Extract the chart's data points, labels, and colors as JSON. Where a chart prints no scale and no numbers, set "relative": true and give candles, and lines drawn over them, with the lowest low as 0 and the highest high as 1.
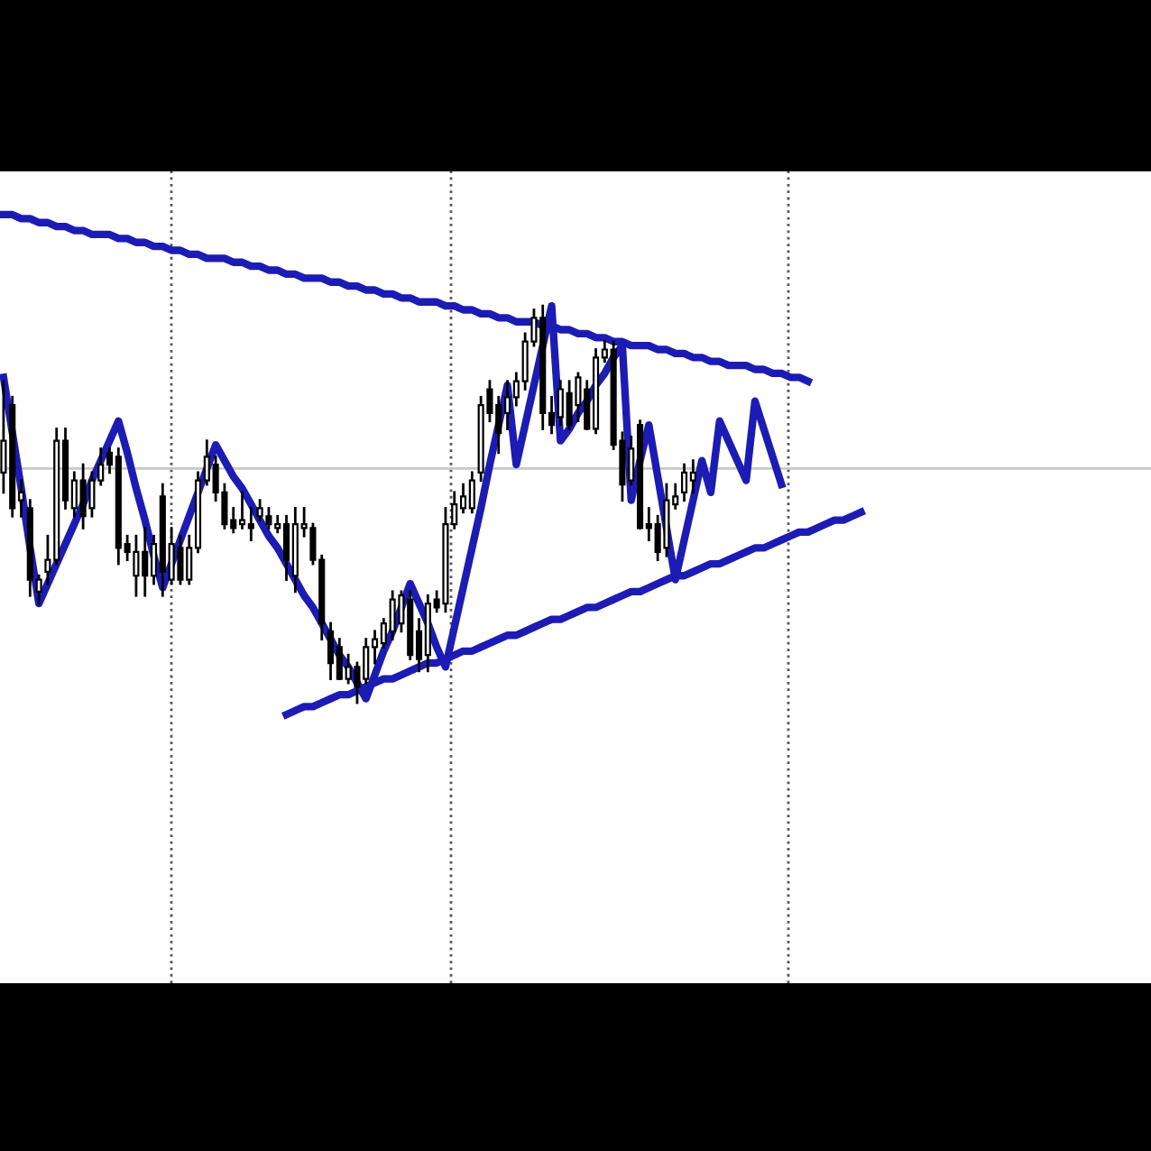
{
  "chart_data": {
    "type": "candlestick",
    "relative": true,
    "categories": [
      null,
      null,
      null,
      null,
      null,
      null,
      null,
      null,
      null,
      null,
      null,
      null,
      null,
      null,
      null,
      null,
      null,
      null,
      null,
      null,
      null,
      null,
      null,
      null,
      null,
      null,
      null,
      null,
      null,
      null,
      null,
      null,
      null,
      null,
      null,
      null,
      null,
      null,
      null,
      null,
      null,
      null,
      null,
      null,
      null,
      null,
      null,
      null,
      null,
      null,
      null,
      null,
      null,
      null,
      null,
      null,
      null,
      null,
      null,
      null,
      null,
      null,
      null,
      null,
      null,
      null,
      null,
      null,
      null,
      null,
      null,
      null,
      null,
      null,
      null,
      null,
      null,
      null,
      null,
      null,
      null,
      null,
      null,
      null,
      null,
      null,
      null,
      null,
      null,
      null,
      null,
      null,
      null,
      null,
      null,
      null,
      null,
      null,
      null,
      null,
      null,
      null,
      null,
      null,
      null,
      null,
      null,
      null,
      null,
      null,
      null,
      null,
      null,
      null,
      null,
      null,
      null,
      null,
      null,
      null,
      null,
      null,
      null,
      null,
      null,
      null,
      null,
      null,
      null,
      null
    ],
    "ohlc": [
      [
        0.58,
        0.81,
        0.53,
        0.66
      ],
      [
        0.75,
        0.77,
        0.47,
        0.49
      ],
      [
        0.51,
        0.56,
        0.47,
        0.53
      ],
      [
        0.49,
        0.51,
        0.27,
        0.31
      ],
      [
        0.28,
        0.32,
        0.25,
        0.31
      ],
      [
        0.33,
        0.42,
        0.3,
        0.36
      ],
      [
        0.36,
        0.69,
        0.35,
        0.66
      ],
      [
        0.66,
        0.69,
        0.49,
        0.51
      ],
      [
        0.49,
        0.58,
        0.47,
        0.56
      ],
      [
        0.56,
        0.6,
        0.44,
        0.47
      ],
      [
        0.49,
        0.58,
        0.47,
        0.56
      ],
      [
        0.56,
        0.64,
        0.55,
        0.6
      ],
      [
        0.63,
        0.64,
        0.58,
        0.6
      ],
      [
        0.62,
        0.64,
        0.35,
        0.39
      ],
      [
        0.4,
        0.42,
        0.36,
        0.38
      ],
      [
        0.32,
        0.42,
        0.27,
        0.38
      ],
      [
        0.38,
        0.44,
        0.27,
        0.32
      ],
      [
        0.32,
        0.42,
        0.3,
        0.4
      ],
      [
        0.52,
        0.55,
        0.27,
        0.33
      ],
      [
        0.31,
        0.44,
        0.3,
        0.4
      ],
      [
        0.39,
        0.42,
        0.3,
        0.31
      ],
      [
        0.31,
        0.42,
        0.3,
        0.39
      ],
      [
        0.39,
        0.58,
        0.38,
        0.56
      ],
      [
        0.56,
        0.66,
        0.55,
        0.62
      ],
      [
        0.6,
        0.62,
        0.51,
        0.53
      ],
      [
        0.53,
        0.55,
        0.44,
        0.45
      ],
      [
        0.46,
        0.49,
        0.43,
        0.44
      ],
      [
        0.45,
        0.53,
        0.44,
        0.46
      ],
      [
        0.45,
        0.49,
        0.41,
        0.44
      ],
      [
        0.47,
        0.51,
        0.46,
        0.49
      ],
      [
        0.47,
        0.49,
        0.44,
        0.45
      ],
      [
        0.44,
        0.47,
        0.43,
        0.45
      ],
      [
        0.45,
        0.47,
        0.31,
        0.36
      ],
      [
        0.32,
        0.49,
        0.28,
        0.45
      ],
      [
        0.44,
        0.49,
        0.42,
        0.45
      ],
      [
        0.44,
        0.45,
        0.35,
        0.36
      ],
      [
        0.36,
        0.37,
        0.16,
        0.2
      ],
      [
        0.18,
        0.2,
        0.06,
        0.1
      ],
      [
        0.14,
        0.16,
        0.06,
        0.06
      ],
      [
        0.06,
        0.12,
        0.05,
        0.09
      ],
      [
        0.09,
        0.1,
        0.0,
        0.04
      ],
      [
        0.06,
        0.16,
        0.05,
        0.14
      ],
      [
        0.14,
        0.18,
        0.1,
        0.16
      ],
      [
        0.15,
        0.21,
        0.14,
        0.2
      ],
      [
        0.18,
        0.28,
        0.16,
        0.26
      ],
      [
        0.2,
        0.28,
        0.18,
        0.27
      ],
      [
        0.26,
        0.28,
        0.11,
        0.12
      ],
      [
        0.18,
        0.21,
        0.08,
        0.11
      ],
      [
        0.12,
        0.27,
        0.08,
        0.25
      ],
      [
        0.26,
        0.28,
        0.23,
        0.24
      ],
      [
        0.25,
        0.49,
        0.23,
        0.45
      ],
      [
        0.45,
        0.53,
        0.44,
        0.5
      ],
      [
        0.49,
        0.55,
        0.48,
        0.52
      ],
      [
        0.49,
        0.58,
        0.48,
        0.56
      ],
      [
        0.58,
        0.77,
        0.56,
        0.75
      ],
      [
        0.79,
        0.81,
        0.71,
        0.73
      ],
      [
        0.75,
        0.77,
        0.63,
        0.68
      ],
      [
        0.73,
        0.81,
        0.69,
        0.77
      ],
      [
        0.77,
        0.83,
        0.75,
        0.81
      ],
      [
        0.81,
        0.93,
        0.79,
        0.91
      ],
      [
        0.91,
        0.99,
        0.9,
        0.97
      ],
      [
        0.97,
        1.0,
        0.69,
        0.73
      ],
      [
        0.73,
        0.77,
        0.68,
        0.7
      ],
      [
        0.72,
        0.81,
        0.7,
        0.79
      ],
      [
        0.78,
        0.81,
        0.69,
        0.7
      ],
      [
        0.75,
        0.83,
        0.71,
        0.82
      ],
      [
        0.79,
        0.81,
        0.69,
        0.69
      ],
      [
        0.69,
        0.89,
        0.68,
        0.87
      ],
      [
        0.87,
        0.91,
        0.86,
        0.89
      ],
      [
        0.89,
        0.91,
        0.64,
        0.65
      ],
      [
        0.66,
        0.68,
        0.51,
        0.55
      ],
      [
        0.56,
        0.67,
        0.55,
        0.64
      ],
      [
        0.7,
        0.71,
        0.44,
        0.44
      ],
      [
        0.45,
        0.49,
        0.41,
        0.44
      ],
      [
        0.45,
        0.47,
        0.36,
        0.38
      ],
      [
        0.39,
        0.55,
        0.37,
        0.51
      ],
      [
        0.5,
        0.55,
        0.49,
        0.52
      ],
      [
        0.53,
        0.6,
        0.51,
        0.58
      ],
      [
        0.56,
        0.61,
        0.53,
        0.58
      ],
      null,
      null,
      null,
      null,
      null,
      null,
      null,
      null,
      null,
      null,
      null,
      null,
      null,
      null,
      null,
      null,
      null,
      null,
      null,
      null,
      null,
      null,
      null,
      null,
      null,
      null,
      null,
      null,
      null,
      null,
      null,
      null,
      null,
      null,
      null,
      null,
      null,
      null,
      null,
      null,
      null,
      null,
      null,
      null,
      null,
      null,
      null,
      null,
      null,
      null,
      null
    ],
    "series": [
      {
        "type": "line",
        "color": "#1c1cb4",
        "values": [
          0.82,
          0.68,
          0.54,
          0.39,
          0.25,
          0.3,
          0.35,
          0.4,
          0.45,
          0.5,
          0.56,
          0.61,
          0.66,
          0.71,
          0.63,
          0.54,
          0.46,
          0.37,
          0.29,
          0.35,
          0.41,
          0.47,
          0.53,
          0.59,
          0.65,
          0.61,
          0.57,
          0.54,
          0.5,
          0.46,
          0.42,
          0.39,
          0.35,
          0.31,
          0.27,
          0.24,
          0.2,
          0.16,
          0.12,
          0.09,
          0.05,
          0.01,
          0.07,
          0.13,
          0.18,
          0.24,
          0.3,
          0.25,
          0.2,
          0.14,
          0.09,
          0.19,
          0.29,
          0.39,
          0.49,
          0.6,
          0.7,
          0.8,
          0.6,
          0.7,
          0.8,
          0.9,
          1.0,
          0.66,
          0.69,
          0.73,
          0.76,
          0.8,
          0.83,
          0.87,
          0.9,
          0.51,
          0.61,
          0.7,
          0.57,
          0.44,
          0.31,
          0.41,
          0.51,
          0.61,
          0.53,
          0.71,
          0.66,
          0.61,
          0.56,
          0.76,
          0.69,
          0.62,
          0.55,
          null,
          null,
          null,
          null,
          null,
          null,
          null,
          null,
          null,
          null,
          null,
          null,
          null,
          null,
          null,
          null,
          null,
          null,
          null,
          null,
          null,
          null,
          null,
          null,
          null,
          null,
          null,
          null,
          null,
          null,
          null,
          null,
          null,
          null,
          null,
          null,
          null,
          null,
          null,
          null,
          null
        ]
      },
      {
        "type": "line",
        "color": "#1c1cb4",
        "values": [
          1.23,
          1.23,
          1.22,
          1.22,
          1.21,
          1.21,
          1.2,
          1.2,
          1.19,
          1.19,
          1.18,
          1.18,
          1.18,
          1.17,
          1.17,
          1.16,
          1.16,
          1.15,
          1.15,
          1.14,
          1.14,
          1.13,
          1.13,
          1.12,
          1.12,
          1.12,
          1.11,
          1.11,
          1.1,
          1.1,
          1.09,
          1.09,
          1.08,
          1.08,
          1.07,
          1.07,
          1.07,
          1.06,
          1.06,
          1.05,
          1.05,
          1.04,
          1.04,
          1.03,
          1.03,
          1.02,
          1.02,
          1.01,
          1.01,
          1.01,
          1.0,
          1.0,
          0.99,
          0.99,
          0.98,
          0.98,
          0.97,
          0.97,
          0.96,
          0.96,
          0.96,
          0.95,
          0.95,
          0.94,
          0.94,
          0.93,
          0.93,
          0.92,
          0.92,
          0.91,
          0.91,
          0.9,
          0.9,
          0.9,
          0.89,
          0.89,
          0.88,
          0.88,
          0.87,
          0.87,
          0.86,
          0.86,
          0.85,
          0.85,
          0.85,
          0.84,
          0.84,
          0.83,
          0.83,
          0.82,
          0.82,
          0.81,
          null,
          null,
          null,
          null,
          null,
          null,
          null,
          null,
          null,
          null,
          null,
          null,
          null,
          null,
          null,
          null,
          null,
          null,
          null,
          null,
          null,
          null,
          null,
          null,
          null,
          null,
          null,
          null,
          null,
          null,
          null,
          null,
          null,
          null,
          null,
          null,
          null,
          null
        ]
      },
      {
        "type": "line",
        "color": "#1c1cb4",
        "values": [
          null,
          null,
          null,
          null,
          null,
          null,
          null,
          null,
          null,
          null,
          null,
          null,
          null,
          null,
          null,
          null,
          null,
          null,
          null,
          null,
          null,
          null,
          null,
          null,
          null,
          null,
          null,
          null,
          null,
          null,
          null,
          null,
          -0.03,
          -0.02,
          -0.01,
          -0.01,
          0.0,
          0.01,
          0.02,
          0.02,
          0.03,
          0.04,
          0.05,
          0.06,
          0.06,
          0.07,
          0.08,
          0.09,
          0.1,
          0.1,
          0.11,
          0.12,
          0.13,
          0.13,
          0.14,
          0.15,
          0.16,
          0.17,
          0.17,
          0.18,
          0.19,
          0.2,
          0.21,
          0.21,
          0.22,
          0.23,
          0.24,
          0.24,
          0.25,
          0.26,
          0.27,
          0.28,
          0.28,
          0.29,
          0.3,
          0.31,
          0.32,
          0.32,
          0.33,
          0.34,
          0.35,
          0.35,
          0.36,
          0.37,
          0.38,
          0.39,
          0.39,
          0.4,
          0.41,
          0.42,
          0.43,
          0.43,
          0.44,
          0.45,
          0.46,
          0.46,
          0.47,
          0.48,
          null,
          null,
          null,
          null,
          null,
          null,
          null,
          null,
          null,
          null,
          null,
          null,
          null,
          null,
          null,
          null,
          null,
          null,
          null,
          null,
          null,
          null,
          null,
          null,
          null,
          null,
          null,
          null,
          null,
          null,
          null,
          null
        ]
      }
    ],
    "ref_lines": [
      {
        "axis": "y",
        "value": 0.59,
        "color": "#c8c8c8",
        "line_style": "solid"
      }
    ]
  }
}
